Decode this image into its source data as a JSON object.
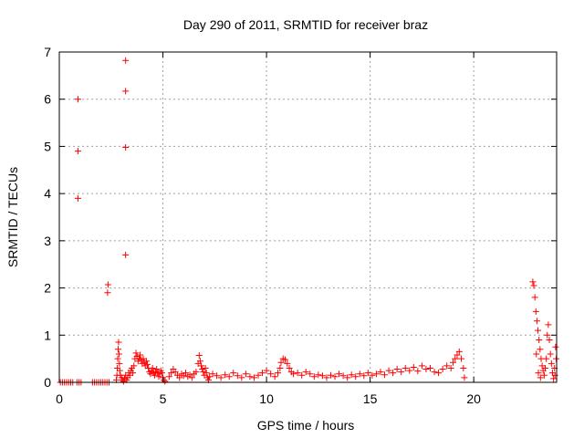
{
  "chart_data": {
    "type": "scatter",
    "title": "Day 290 of 2011, SRMTID for receiver braz",
    "xlabel": "GPS time / hours",
    "ylabel": "SRMTID / TECUs",
    "xlim": [
      0,
      24
    ],
    "ylim": [
      0,
      7
    ],
    "xticks": [
      0,
      5,
      10,
      15,
      20
    ],
    "yticks": [
      0,
      1,
      2,
      3,
      4,
      5,
      6,
      7
    ],
    "grid": true,
    "marker": "plus",
    "color": "#ff0000",
    "series": [
      {
        "points": [
          [
            0.05,
            0
          ],
          [
            0.15,
            0
          ],
          [
            0.25,
            0
          ],
          [
            0.35,
            0
          ],
          [
            0.45,
            0
          ],
          [
            0.55,
            0
          ],
          [
            0.65,
            0
          ],
          [
            0.85,
            0
          ],
          [
            0.95,
            0
          ],
          [
            1.05,
            0
          ],
          [
            0.9,
            6.0
          ],
          [
            0.9,
            4.9
          ],
          [
            0.9,
            3.9
          ],
          [
            1.6,
            0
          ],
          [
            1.7,
            0
          ],
          [
            1.8,
            0
          ],
          [
            1.9,
            0
          ],
          [
            2.0,
            0
          ],
          [
            2.1,
            0
          ],
          [
            2.2,
            0
          ],
          [
            2.3,
            0
          ],
          [
            2.4,
            0
          ],
          [
            2.35,
            2.07
          ],
          [
            2.33,
            1.9
          ],
          [
            2.75,
            0.05
          ],
          [
            2.78,
            0.15
          ],
          [
            2.8,
            0.3
          ],
          [
            2.82,
            0.5
          ],
          [
            2.84,
            0.7
          ],
          [
            2.86,
            0.85
          ],
          [
            2.88,
            0.6
          ],
          [
            2.9,
            0.4
          ],
          [
            2.92,
            0.25
          ],
          [
            2.95,
            0.15
          ],
          [
            3.0,
            0.1
          ],
          [
            3.05,
            0.05
          ],
          [
            3.1,
            0.02
          ],
          [
            3.15,
            0.08
          ],
          [
            3.2,
            0.15
          ],
          [
            3.25,
            0.05
          ],
          [
            3.3,
            0.1
          ],
          [
            3.35,
            0.2
          ],
          [
            3.4,
            0.15
          ],
          [
            3.45,
            0.25
          ],
          [
            3.5,
            0.3
          ],
          [
            3.2,
            6.82
          ],
          [
            3.2,
            6.17
          ],
          [
            3.2,
            4.98
          ],
          [
            3.2,
            2.7
          ],
          [
            3.55,
            0.2
          ],
          [
            3.6,
            0.35
          ],
          [
            3.65,
            0.5
          ],
          [
            3.7,
            0.62
          ],
          [
            3.75,
            0.55
          ],
          [
            3.8,
            0.45
          ],
          [
            3.85,
            0.5
          ],
          [
            3.9,
            0.58
          ],
          [
            3.95,
            0.48
          ],
          [
            4.0,
            0.4
          ],
          [
            4.05,
            0.5
          ],
          [
            4.1,
            0.42
          ],
          [
            4.15,
            0.35
          ],
          [
            4.2,
            0.45
          ],
          [
            4.25,
            0.38
          ],
          [
            4.3,
            0.3
          ],
          [
            4.35,
            0.22
          ],
          [
            4.4,
            0.18
          ],
          [
            4.45,
            0.25
          ],
          [
            4.5,
            0.3
          ],
          [
            4.55,
            0.2
          ],
          [
            4.6,
            0.15
          ],
          [
            4.65,
            0.22
          ],
          [
            4.7,
            0.28
          ],
          [
            4.75,
            0.2
          ],
          [
            4.8,
            0.12
          ],
          [
            4.85,
            0.18
          ],
          [
            4.9,
            0.25
          ],
          [
            4.95,
            0.2
          ],
          [
            5.0,
            0.1
          ],
          [
            5.05,
            0.05
          ],
          [
            5.1,
            0.02
          ],
          [
            5.3,
            0.12
          ],
          [
            5.4,
            0.2
          ],
          [
            5.5,
            0.28
          ],
          [
            5.6,
            0.22
          ],
          [
            5.7,
            0.15
          ],
          [
            5.8,
            0.1
          ],
          [
            5.9,
            0.18
          ],
          [
            6.0,
            0.14
          ],
          [
            6.1,
            0.2
          ],
          [
            6.2,
            0.12
          ],
          [
            6.3,
            0.16
          ],
          [
            6.4,
            0.1
          ],
          [
            6.5,
            0.18
          ],
          [
            6.6,
            0.22
          ],
          [
            6.7,
            0.4
          ],
          [
            6.75,
            0.57
          ],
          [
            6.8,
            0.45
          ],
          [
            6.85,
            0.35
          ],
          [
            6.9,
            0.28
          ],
          [
            6.95,
            0.22
          ],
          [
            7.0,
            0.15
          ],
          [
            7.05,
            0.3
          ],
          [
            7.1,
            0.2
          ],
          [
            7.15,
            0.1
          ],
          [
            7.2,
            0.05
          ],
          [
            7.25,
            0.12
          ],
          [
            7.4,
            0.18
          ],
          [
            7.6,
            0.14
          ],
          [
            7.8,
            0.1
          ],
          [
            8.0,
            0.16
          ],
          [
            8.2,
            0.12
          ],
          [
            8.4,
            0.2
          ],
          [
            8.6,
            0.14
          ],
          [
            8.8,
            0.1
          ],
          [
            9.0,
            0.18
          ],
          [
            9.2,
            0.12
          ],
          [
            9.4,
            0.1
          ],
          [
            9.6,
            0.15
          ],
          [
            9.8,
            0.2
          ],
          [
            10.0,
            0.25
          ],
          [
            10.2,
            0.18
          ],
          [
            10.4,
            0.12
          ],
          [
            10.55,
            0.2
          ],
          [
            10.65,
            0.3
          ],
          [
            10.7,
            0.42
          ],
          [
            10.8,
            0.5
          ],
          [
            10.9,
            0.48
          ],
          [
            11.0,
            0.4
          ],
          [
            11.1,
            0.3
          ],
          [
            11.2,
            0.22
          ],
          [
            11.3,
            0.18
          ],
          [
            11.5,
            0.2
          ],
          [
            11.7,
            0.15
          ],
          [
            11.9,
            0.22
          ],
          [
            12.1,
            0.18
          ],
          [
            12.3,
            0.12
          ],
          [
            12.5,
            0.16
          ],
          [
            12.7,
            0.14
          ],
          [
            12.9,
            0.1
          ],
          [
            13.1,
            0.15
          ],
          [
            13.3,
            0.12
          ],
          [
            13.5,
            0.18
          ],
          [
            13.7,
            0.14
          ],
          [
            13.9,
            0.1
          ],
          [
            14.1,
            0.16
          ],
          [
            14.3,
            0.12
          ],
          [
            14.5,
            0.18
          ],
          [
            14.7,
            0.14
          ],
          [
            14.9,
            0.2
          ],
          [
            15.1,
            0.15
          ],
          [
            15.3,
            0.18
          ],
          [
            15.5,
            0.22
          ],
          [
            15.7,
            0.16
          ],
          [
            15.9,
            0.25
          ],
          [
            16.1,
            0.2
          ],
          [
            16.3,
            0.28
          ],
          [
            16.5,
            0.22
          ],
          [
            16.7,
            0.3
          ],
          [
            16.9,
            0.25
          ],
          [
            17.1,
            0.32
          ],
          [
            17.3,
            0.24
          ],
          [
            17.5,
            0.35
          ],
          [
            17.7,
            0.28
          ],
          [
            17.9,
            0.3
          ],
          [
            18.1,
            0.22
          ],
          [
            18.3,
            0.2
          ],
          [
            18.5,
            0.28
          ],
          [
            18.7,
            0.35
          ],
          [
            18.9,
            0.3
          ],
          [
            19.0,
            0.42
          ],
          [
            19.1,
            0.5
          ],
          [
            19.2,
            0.58
          ],
          [
            19.3,
            0.65
          ],
          [
            19.4,
            0.5
          ],
          [
            19.5,
            0.3
          ],
          [
            19.55,
            0.1
          ],
          [
            22.85,
            2.13
          ],
          [
            22.9,
            2.05
          ],
          [
            22.95,
            1.8
          ],
          [
            23.0,
            1.5
          ],
          [
            23.05,
            1.3
          ],
          [
            23.1,
            1.1
          ],
          [
            23.15,
            0.9
          ],
          [
            23.2,
            0.7
          ],
          [
            23.25,
            0.5
          ],
          [
            23.3,
            0.35
          ],
          [
            23.35,
            0.25
          ],
          [
            23.4,
            0.15
          ],
          [
            23.45,
            0.3
          ],
          [
            23.5,
            0.5
          ],
          [
            23.55,
            1.0
          ],
          [
            23.6,
            1.22
          ],
          [
            23.65,
            0.9
          ],
          [
            23.7,
            0.6
          ],
          [
            23.75,
            0.4
          ],
          [
            23.8,
            0.2
          ],
          [
            23.85,
            0.08
          ],
          [
            23.9,
            0.3
          ],
          [
            23.95,
            0.75
          ],
          [
            23.98,
            0.5
          ],
          [
            23.92,
            0.15
          ],
          [
            23.02,
            0.6
          ],
          [
            23.12,
            0.2
          ],
          [
            23.22,
            0.1
          ]
        ]
      }
    ]
  }
}
